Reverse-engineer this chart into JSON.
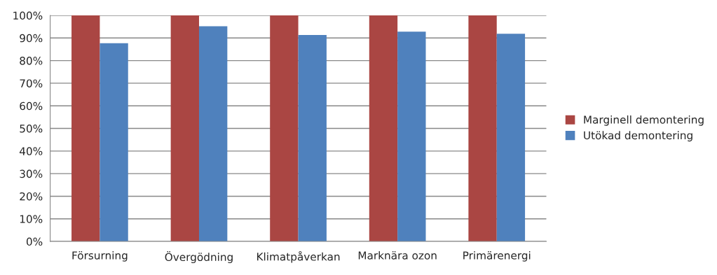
{
  "chart_data": {
    "type": "bar",
    "categories": [
      "Försurning",
      "Övergödning",
      "Klimatpåverkan",
      "Marknära ozon",
      "Primärenergi"
    ],
    "series": [
      {
        "name": "Marginell demontering",
        "color": "#aa4643",
        "values": [
          100,
          100,
          100,
          100,
          100
        ]
      },
      {
        "name": "Utökad demontering",
        "color": "#4f81bd",
        "values": [
          87.7,
          95.2,
          91.3,
          92.8,
          91.9
        ]
      }
    ],
    "ylim": [
      0,
      100
    ],
    "yticks": [
      {
        "value": 0,
        "label": "0%"
      },
      {
        "value": 10,
        "label": "10%"
      },
      {
        "value": 20,
        "label": "20%"
      },
      {
        "value": 30,
        "label": "30%"
      },
      {
        "value": 40,
        "label": "40%"
      },
      {
        "value": 50,
        "label": "50%"
      },
      {
        "value": 60,
        "label": "60%"
      },
      {
        "value": 70,
        "label": "70%"
      },
      {
        "value": 80,
        "label": "80%"
      },
      {
        "value": 90,
        "label": "90%"
      },
      {
        "value": 100,
        "label": "100%"
      }
    ],
    "grid": "y",
    "legend": "right"
  }
}
